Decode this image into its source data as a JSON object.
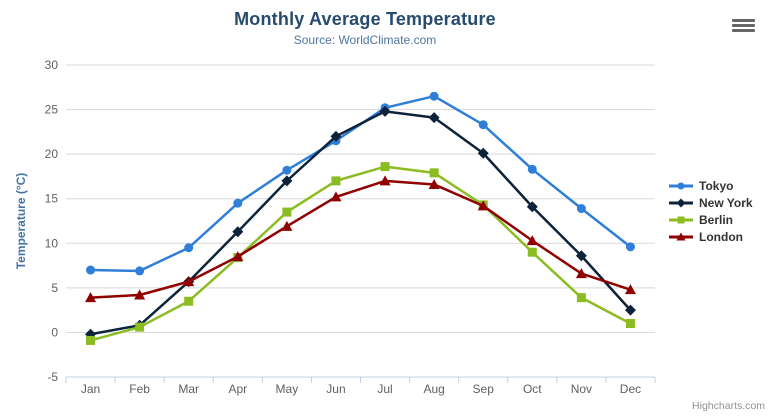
{
  "header": {
    "title": "Monthly Average Temperature",
    "subtitle": "Source: WorldClimate.com"
  },
  "credits": {
    "label": "Highcharts.com"
  },
  "icons": {
    "menu": "hamburger-menu-icon"
  },
  "colors": {
    "title": "#274b6d",
    "subtitle": "#4d759e",
    "axis_title": "#4572a7",
    "tick_label": "#606060",
    "grid_line": "#d8d8d8",
    "axis_line": "#c0d0e0",
    "legend_text": "#333333",
    "credits": "#909090",
    "menu_icon": "#666666"
  },
  "chart_data": {
    "type": "line",
    "title": "Monthly Average Temperature",
    "subtitle": "Source: WorldClimate.com",
    "categories": [
      "Jan",
      "Feb",
      "Mar",
      "Apr",
      "May",
      "Jun",
      "Jul",
      "Aug",
      "Sep",
      "Oct",
      "Nov",
      "Dec"
    ],
    "xlabel": "",
    "ylabel": "Temperature (°C)",
    "ylim": [
      -5,
      30
    ],
    "yticks": [
      -5,
      0,
      5,
      10,
      15,
      20,
      25,
      30
    ],
    "grid": "horizontal",
    "legend_position": "right",
    "series": [
      {
        "name": "Tokyo",
        "color": "#2f7ed8",
        "marker": "circle",
        "values": [
          7.0,
          6.9,
          9.5,
          14.5,
          18.2,
          21.5,
          25.2,
          26.5,
          23.3,
          18.3,
          13.9,
          9.6
        ]
      },
      {
        "name": "New York",
        "color": "#0d233a",
        "marker": "diamond",
        "values": [
          -0.2,
          0.8,
          5.7,
          11.3,
          17.0,
          22.0,
          24.8,
          24.1,
          20.1,
          14.1,
          8.6,
          2.5
        ]
      },
      {
        "name": "Berlin",
        "color": "#8bbc21",
        "marker": "square",
        "values": [
          -0.9,
          0.6,
          3.5,
          8.4,
          13.5,
          17.0,
          18.6,
          17.9,
          14.3,
          9.0,
          3.9,
          1.0
        ]
      },
      {
        "name": "London",
        "color": "#910000",
        "marker": "triangle",
        "values": [
          3.9,
          4.2,
          5.7,
          8.5,
          11.9,
          15.2,
          17.0,
          16.6,
          14.2,
          10.3,
          6.6,
          4.8
        ]
      }
    ]
  }
}
